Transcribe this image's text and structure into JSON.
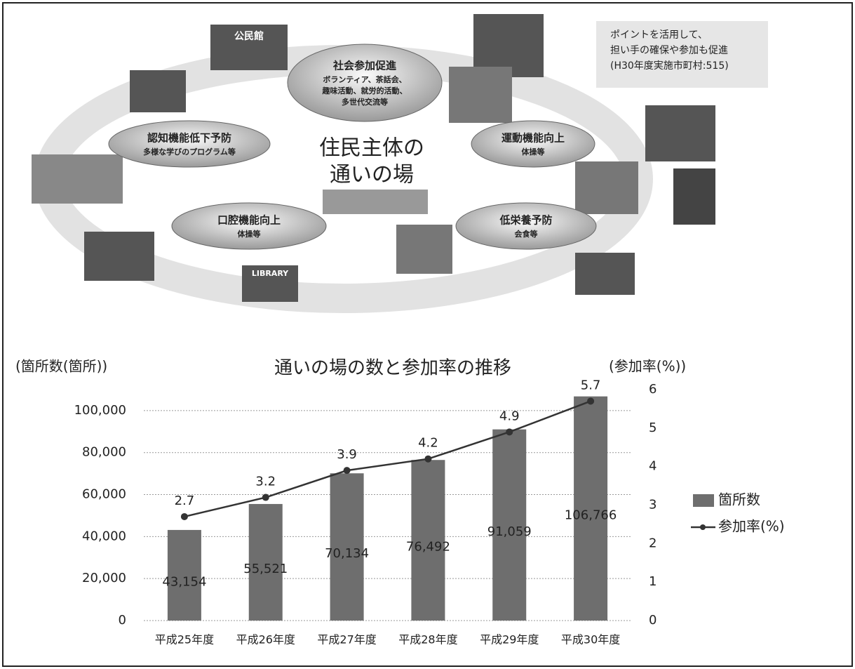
{
  "diagram": {
    "center": [
      "住民主体の",
      "通いの場"
    ],
    "bubbles": [
      {
        "title": "社会参加促進",
        "lines": [
          "ボランティア、茶話会、",
          "趣味活動、就労的活動、",
          "多世代交流等"
        ]
      },
      {
        "title": "認知機能低下予防",
        "lines": [
          "多様な学びのプログラム等"
        ]
      },
      {
        "title": "運動機能向上",
        "lines": [
          "体操等"
        ]
      },
      {
        "title": "口腔機能向上",
        "lines": [
          "体操等"
        ]
      },
      {
        "title": "低栄養予防",
        "lines": [
          "会食等"
        ]
      }
    ],
    "note": [
      "ポイントを活用して、",
      "担い手の確保や参加も促進",
      "(H30年度実施市町村:515)"
    ],
    "signs": [
      "公民館",
      "LIBRARY"
    ]
  },
  "chart_data": {
    "type": "bar",
    "title": "通いの場の数と参加率の推移",
    "y_label": "(箇所数(箇所))",
    "y2_label": "(参加率(%))",
    "categories": [
      "平成25年度",
      "平成26年度",
      "平成27年度",
      "平成28年度",
      "平成29年度",
      "平成30年度"
    ],
    "series": [
      {
        "name": "箇所数",
        "type": "bar",
        "color": "#6e6e6e",
        "values": [
          43154,
          55521,
          70134,
          76492,
          91059,
          106766
        ],
        "value_labels": [
          "43,154",
          "55,521",
          "70,134",
          "76,492",
          "91,059",
          "106,766"
        ]
      },
      {
        "name": "参加率(%)",
        "type": "line",
        "axis": "y2",
        "color": "#333333",
        "values": [
          2.7,
          3.2,
          3.9,
          4.2,
          4.9,
          5.7
        ]
      }
    ],
    "ylim": [
      0,
      110000
    ],
    "yticks": [
      0,
      {
        "value": 20000,
        "label": "20,000"
      },
      {
        "value": 40000,
        "label": "40,000"
      },
      {
        "value": 60000,
        "label": "60,000"
      },
      {
        "value": 80000,
        "label": "80,000"
      },
      {
        "value": 100000,
        "label": "100,000"
      }
    ],
    "y2lim": [
      0,
      6
    ],
    "y2ticks": [
      0,
      1,
      2,
      3,
      4,
      5,
      6
    ],
    "grid": true,
    "legend": "right"
  }
}
